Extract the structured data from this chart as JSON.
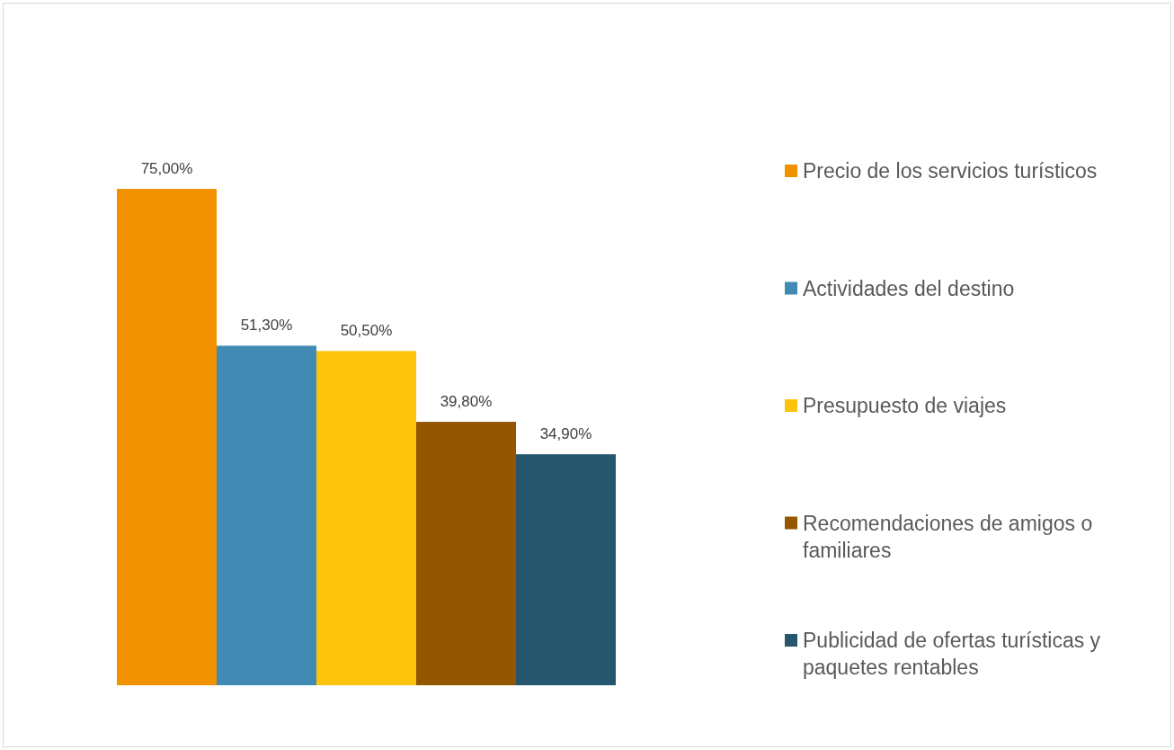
{
  "chart_data": {
    "type": "bar",
    "categories": [
      null
    ],
    "legend": "right",
    "series": [
      {
        "name": "Precio de los servicios turísticos",
        "color": "#f39200",
        "values": [
          75.0
        ],
        "value_labels": [
          "75,00%"
        ]
      },
      {
        "name": "Actividades del destino",
        "color": "#418ab3",
        "values": [
          51.3
        ],
        "value_labels": [
          "51,30%"
        ]
      },
      {
        "name": "Presupuesto de viajes",
        "color": "#fdc20c",
        "values": [
          50.5
        ],
        "value_labels": [
          "50,50%"
        ]
      },
      {
        "name": "Recomendaciones de amigos o familiares",
        "color": "#945700",
        "values": [
          39.8
        ],
        "value_labels": [
          "39,80%"
        ]
      },
      {
        "name": "Publicidad de ofertas turísticas y paquetes rentables",
        "color": "#26566e",
        "values": [
          34.9
        ],
        "value_labels": [
          "34,90%"
        ]
      }
    ]
  }
}
